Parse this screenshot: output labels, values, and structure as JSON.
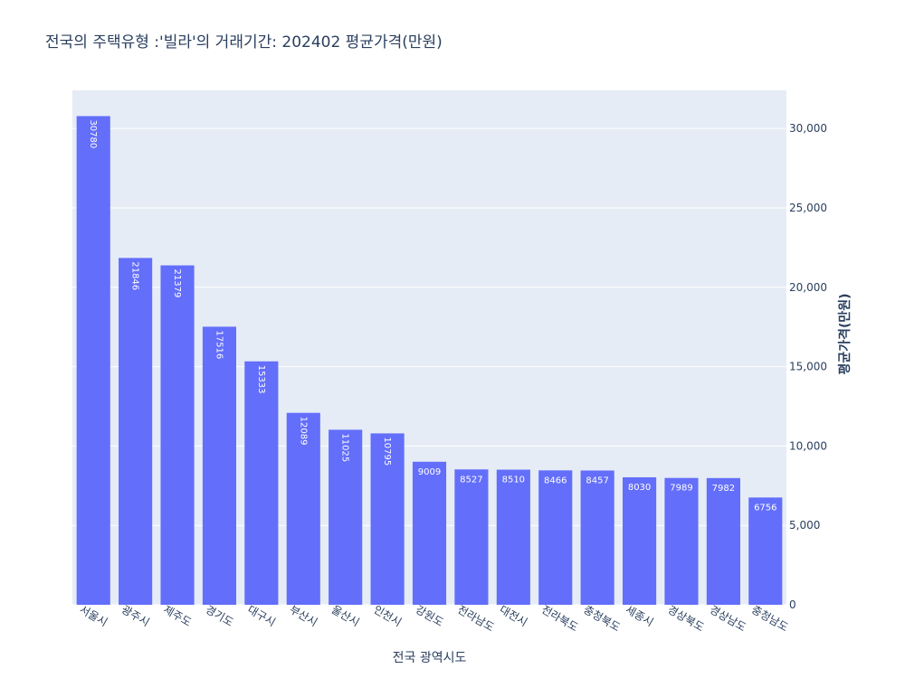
{
  "chart_data": {
    "type": "bar",
    "title": "전국의 주택유형 :'빌라'의 거래기간: 202402 평균가격(만원)",
    "xlabel": "전국 광역시도",
    "ylabel": "평균가격(만원)",
    "categories": [
      "서울시",
      "광주시",
      "제주도",
      "경기도",
      "대구시",
      "부산시",
      "울산시",
      "인천시",
      "강원도",
      "전라남도",
      "대전시",
      "전라북도",
      "충청북도",
      "세종시",
      "경상북도",
      "경상남도",
      "충청남도"
    ],
    "values": [
      30780,
      21846,
      21379,
      17516,
      15333,
      12089,
      11025,
      10795,
      9009,
      8527,
      8510,
      8466,
      8457,
      8030,
      7989,
      7982,
      6756
    ],
    "ylim": [
      0,
      32400
    ],
    "y_ticks": [
      0,
      5000,
      10000,
      15000,
      20000,
      25000,
      30000
    ],
    "y_tick_labels": [
      "0",
      "5,000",
      "10,000",
      "15,000",
      "20,000",
      "25,000",
      "30,000"
    ],
    "y_axis_side": "right",
    "grid": true,
    "bar_color": "#636efa",
    "plot_background": "#e5ecf6"
  }
}
